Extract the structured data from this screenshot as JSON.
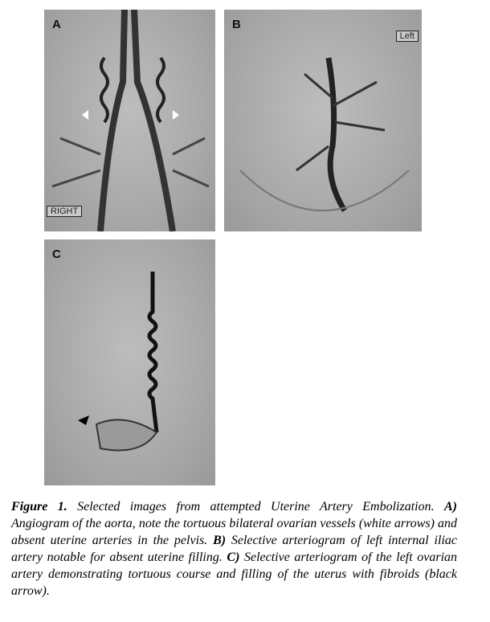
{
  "panels": [
    {
      "label": "A",
      "tag": "RIGHT"
    },
    {
      "label": "B",
      "tag": "Left"
    },
    {
      "label": "C"
    }
  ],
  "caption": {
    "figure": "Figure 1.",
    "intro": "Selected images from attempted Uterine Artery Embolization.",
    "parts": [
      {
        "label": "A)",
        "text": "Angiogram of the aorta, note the tortuous bilateral ovarian vessels (white arrows) and absent uterine arteries in the pelvis."
      },
      {
        "label": "B)",
        "text": "Selective arteriogram of left internal iliac artery notable for absent uterine filling."
      },
      {
        "label": "C)",
        "text": "Selective arteriogram of the left ovarian artery demonstrating tortuous course and filling of the uterus with fibroids (black arrow)."
      }
    ]
  }
}
